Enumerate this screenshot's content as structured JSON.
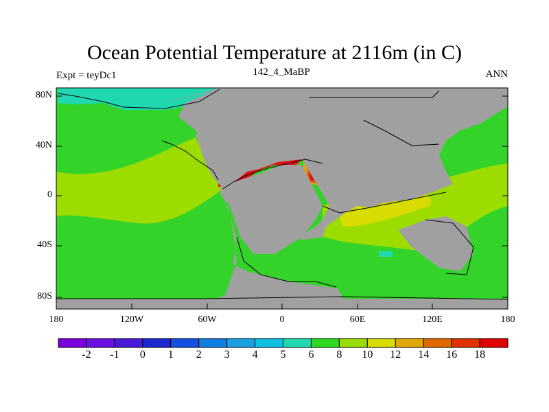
{
  "title": "Ocean Potential Temperature at 2116m (in C)",
  "subtitle_left": "Expt = teyDc1",
  "subtitle_center": "142_4_MaBP",
  "subtitle_right": "ANN",
  "map": {
    "lat_ticks": [
      "80N",
      "40N",
      "0",
      "40S",
      "80S"
    ],
    "lon_ticks": [
      "180",
      "120W",
      "60W",
      "0",
      "60E",
      "120E",
      "180"
    ]
  },
  "colorbar": {
    "labels": [
      "-2",
      "-1",
      "0",
      "1",
      "2",
      "3",
      "4",
      "5",
      "6",
      "8",
      "10",
      "12",
      "14",
      "16",
      "18"
    ],
    "colors": [
      "#7a00d9",
      "#6a10e0",
      "#4a1ad8",
      "#1a28d0",
      "#1550e0",
      "#1080e0",
      "#1aa0e0",
      "#10c0e0",
      "#20d8b0",
      "#2cd820",
      "#98dc00",
      "#d8dc00",
      "#e0a800",
      "#e06800",
      "#e03000",
      "#e00000"
    ]
  },
  "colors": {
    "land": "#a0a0a0",
    "ocean_green": "#34d32a",
    "ocean_lime": "#9ddc00",
    "ocean_yellow": "#d8dc00",
    "ocean_orange": "#e2a200",
    "ocean_darkorange": "#e06000",
    "ocean_red": "#e01010",
    "ocean_teal": "#20d8b0",
    "ocean_cyan": "#10c0e0"
  }
}
